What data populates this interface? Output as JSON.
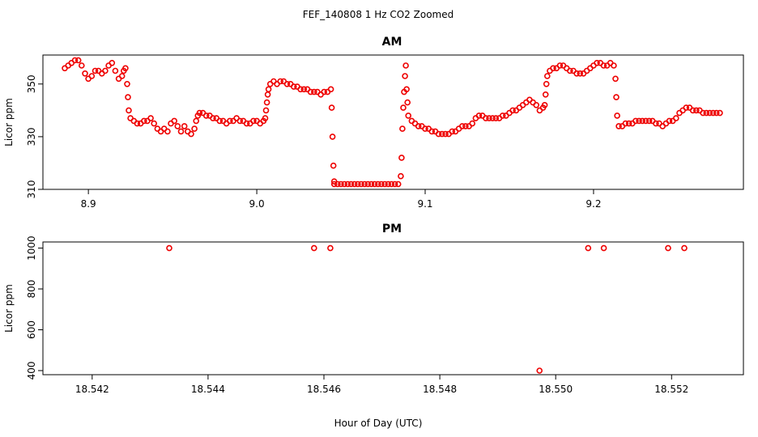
{
  "figure": {
    "title": "FEF_140808  1 Hz CO2 Zoomed",
    "xlabel": "Hour of Day (UTC)"
  },
  "colors": {
    "points": "#ee0000",
    "axes": "#000000",
    "background": "#ffffff"
  },
  "chart_data": [
    {
      "type": "scatter",
      "title": "AM",
      "ylabel": "Licor ppm",
      "xlim": [
        8.873,
        9.289
      ],
      "ylim": [
        310,
        361
      ],
      "xticks": [
        8.9,
        9.0,
        9.1,
        9.2
      ],
      "xtick_labels": [
        "8.9",
        "9.0",
        "9.1",
        "9.2"
      ],
      "yticks": [
        310,
        330,
        350
      ],
      "ytick_labels": [
        "310",
        "330",
        "350"
      ],
      "grid": false,
      "legend": false,
      "series": [
        {
          "marker": "open-circle",
          "color": "#ee0000",
          "points": [
            [
              8.886,
              356
            ],
            [
              8.888,
              357
            ],
            [
              8.89,
              358
            ],
            [
              8.892,
              359
            ],
            [
              8.894,
              359
            ],
            [
              8.896,
              357
            ],
            [
              8.898,
              354
            ],
            [
              8.9,
              352
            ],
            [
              8.902,
              353
            ],
            [
              8.904,
              355
            ],
            [
              8.906,
              355
            ],
            [
              8.908,
              354
            ],
            [
              8.91,
              355
            ],
            [
              8.912,
              357
            ],
            [
              8.914,
              358
            ],
            [
              8.916,
              355
            ],
            [
              8.918,
              352
            ],
            [
              8.92,
              353
            ],
            [
              8.921,
              355
            ],
            [
              8.922,
              356
            ],
            [
              8.923,
              350
            ],
            [
              8.9235,
              345
            ],
            [
              8.924,
              340
            ],
            [
              8.925,
              337
            ],
            [
              8.927,
              336
            ],
            [
              8.929,
              335
            ],
            [
              8.931,
              335
            ],
            [
              8.933,
              336
            ],
            [
              8.935,
              336
            ],
            [
              8.937,
              337
            ],
            [
              8.939,
              335
            ],
            [
              8.941,
              333
            ],
            [
              8.943,
              332
            ],
            [
              8.945,
              333
            ],
            [
              8.947,
              332
            ],
            [
              8.949,
              335
            ],
            [
              8.951,
              336
            ],
            [
              8.953,
              334
            ],
            [
              8.955,
              332
            ],
            [
              8.957,
              334
            ],
            [
              8.959,
              332
            ],
            [
              8.961,
              331
            ],
            [
              8.963,
              333
            ],
            [
              8.964,
              336
            ],
            [
              8.965,
              338
            ],
            [
              8.966,
              339
            ],
            [
              8.968,
              339
            ],
            [
              8.97,
              338
            ],
            [
              8.972,
              338
            ],
            [
              8.974,
              337
            ],
            [
              8.976,
              337
            ],
            [
              8.978,
              336
            ],
            [
              8.98,
              336
            ],
            [
              8.982,
              335
            ],
            [
              8.984,
              336
            ],
            [
              8.986,
              336
            ],
            [
              8.988,
              337
            ],
            [
              8.99,
              336
            ],
            [
              8.992,
              336
            ],
            [
              8.994,
              335
            ],
            [
              8.996,
              335
            ],
            [
              8.998,
              336
            ],
            [
              9.0,
              336
            ],
            [
              9.002,
              335
            ],
            [
              9.004,
              336
            ],
            [
              9.005,
              337
            ],
            [
              9.0055,
              340
            ],
            [
              9.006,
              343
            ],
            [
              9.0065,
              346
            ],
            [
              9.007,
              348
            ],
            [
              9.008,
              350
            ],
            [
              9.01,
              351
            ],
            [
              9.012,
              350
            ],
            [
              9.014,
              351
            ],
            [
              9.016,
              351
            ],
            [
              9.018,
              350
            ],
            [
              9.02,
              350
            ],
            [
              9.022,
              349
            ],
            [
              9.024,
              349
            ],
            [
              9.026,
              348
            ],
            [
              9.028,
              348
            ],
            [
              9.03,
              348
            ],
            [
              9.032,
              347
            ],
            [
              9.034,
              347
            ],
            [
              9.036,
              347
            ],
            [
              9.038,
              346
            ],
            [
              9.04,
              347
            ],
            [
              9.042,
              347
            ],
            [
              9.044,
              348
            ],
            [
              9.0445,
              341
            ],
            [
              9.045,
              330
            ],
            [
              9.0455,
              319
            ],
            [
              9.046,
              313
            ],
            [
              9.046,
              312
            ],
            [
              9.048,
              312
            ],
            [
              9.05,
              312
            ],
            [
              9.052,
              312
            ],
            [
              9.054,
              312
            ],
            [
              9.056,
              312
            ],
            [
              9.058,
              312
            ],
            [
              9.06,
              312
            ],
            [
              9.062,
              312
            ],
            [
              9.064,
              312
            ],
            [
              9.066,
              312
            ],
            [
              9.068,
              312
            ],
            [
              9.07,
              312
            ],
            [
              9.072,
              312
            ],
            [
              9.074,
              312
            ],
            [
              9.076,
              312
            ],
            [
              9.078,
              312
            ],
            [
              9.08,
              312
            ],
            [
              9.082,
              312
            ],
            [
              9.084,
              312
            ],
            [
              9.0855,
              315
            ],
            [
              9.086,
              322
            ],
            [
              9.0865,
              333
            ],
            [
              9.087,
              341
            ],
            [
              9.0875,
              347
            ],
            [
              9.088,
              353
            ],
            [
              9.0885,
              357
            ],
            [
              9.089,
              348
            ],
            [
              9.0895,
              343
            ],
            [
              9.09,
              338
            ],
            [
              9.092,
              336
            ],
            [
              9.094,
              335
            ],
            [
              9.096,
              334
            ],
            [
              9.098,
              334
            ],
            [
              9.1,
              333
            ],
            [
              9.102,
              333
            ],
            [
              9.104,
              332
            ],
            [
              9.106,
              332
            ],
            [
              9.108,
              331
            ],
            [
              9.11,
              331
            ],
            [
              9.112,
              331
            ],
            [
              9.114,
              331
            ],
            [
              9.116,
              332
            ],
            [
              9.118,
              332
            ],
            [
              9.12,
              333
            ],
            [
              9.122,
              334
            ],
            [
              9.124,
              334
            ],
            [
              9.126,
              334
            ],
            [
              9.128,
              335
            ],
            [
              9.13,
              337
            ],
            [
              9.132,
              338
            ],
            [
              9.134,
              338
            ],
            [
              9.136,
              337
            ],
            [
              9.138,
              337
            ],
            [
              9.14,
              337
            ],
            [
              9.142,
              337
            ],
            [
              9.144,
              337
            ],
            [
              9.146,
              338
            ],
            [
              9.148,
              338
            ],
            [
              9.15,
              339
            ],
            [
              9.152,
              340
            ],
            [
              9.154,
              340
            ],
            [
              9.156,
              341
            ],
            [
              9.158,
              342
            ],
            [
              9.16,
              343
            ],
            [
              9.162,
              344
            ],
            [
              9.164,
              343
            ],
            [
              9.166,
              342
            ],
            [
              9.168,
              340
            ],
            [
              9.17,
              341
            ],
            [
              9.171,
              342
            ],
            [
              9.1715,
              346
            ],
            [
              9.172,
              350
            ],
            [
              9.1725,
              353
            ],
            [
              9.174,
              355
            ],
            [
              9.176,
              356
            ],
            [
              9.178,
              356
            ],
            [
              9.18,
              357
            ],
            [
              9.182,
              357
            ],
            [
              9.184,
              356
            ],
            [
              9.186,
              355
            ],
            [
              9.188,
              355
            ],
            [
              9.19,
              354
            ],
            [
              9.192,
              354
            ],
            [
              9.194,
              354
            ],
            [
              9.196,
              355
            ],
            [
              9.198,
              356
            ],
            [
              9.2,
              357
            ],
            [
              9.202,
              358
            ],
            [
              9.204,
              358
            ],
            [
              9.206,
              357
            ],
            [
              9.208,
              357
            ],
            [
              9.21,
              358
            ],
            [
              9.212,
              357
            ],
            [
              9.213,
              352
            ],
            [
              9.2135,
              345
            ],
            [
              9.214,
              338
            ],
            [
              9.215,
              334
            ],
            [
              9.217,
              334
            ],
            [
              9.219,
              335
            ],
            [
              9.221,
              335
            ],
            [
              9.223,
              335
            ],
            [
              9.225,
              336
            ],
            [
              9.227,
              336
            ],
            [
              9.229,
              336
            ],
            [
              9.231,
              336
            ],
            [
              9.233,
              336
            ],
            [
              9.235,
              336
            ],
            [
              9.237,
              335
            ],
            [
              9.239,
              335
            ],
            [
              9.241,
              334
            ],
            [
              9.243,
              335
            ],
            [
              9.245,
              336
            ],
            [
              9.247,
              336
            ],
            [
              9.249,
              337
            ],
            [
              9.251,
              339
            ],
            [
              9.253,
              340
            ],
            [
              9.255,
              341
            ],
            [
              9.257,
              341
            ],
            [
              9.259,
              340
            ],
            [
              9.261,
              340
            ],
            [
              9.263,
              340
            ],
            [
              9.265,
              339
            ],
            [
              9.267,
              339
            ],
            [
              9.269,
              339
            ],
            [
              9.271,
              339
            ],
            [
              9.273,
              339
            ],
            [
              9.275,
              339
            ]
          ]
        }
      ]
    },
    {
      "type": "scatter",
      "title": "PM",
      "ylabel": "Licor ppm",
      "xlim": [
        18.54115,
        18.55324
      ],
      "ylim": [
        380,
        1030
      ],
      "xticks": [
        18.542,
        18.544,
        18.546,
        18.548,
        18.55,
        18.552
      ],
      "xtick_labels": [
        "18.542",
        "18.544",
        "18.546",
        "18.548",
        "18.550",
        "18.552"
      ],
      "yticks": [
        400,
        600,
        800,
        1000
      ],
      "ytick_labels": [
        "400",
        "600",
        "800",
        "1000"
      ],
      "grid": false,
      "legend": false,
      "series": [
        {
          "marker": "open-circle",
          "color": "#ee0000",
          "points": [
            [
              18.54333,
              1000
            ],
            [
              18.54583,
              1000
            ],
            [
              18.54611,
              1000
            ],
            [
              18.54972,
              400
            ],
            [
              18.55056,
              1000
            ],
            [
              18.55083,
              1000
            ],
            [
              18.55194,
              1000
            ],
            [
              18.55222,
              1000
            ]
          ]
        }
      ]
    }
  ]
}
